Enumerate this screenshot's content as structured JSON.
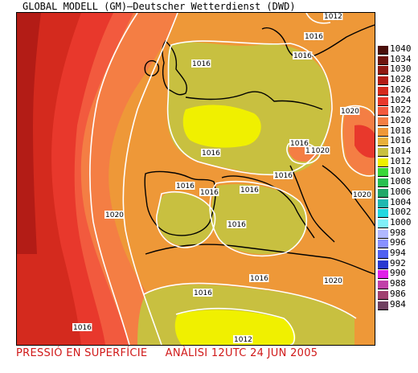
{
  "header": {
    "title": "GLOBAL MODELL (GM)—Deutscher Wetterdienst (DWD)"
  },
  "footer": {
    "left": "PRESSIÓ EN SUPERFÍCIE",
    "right": "ANÀLISI 12UTC 24 JUN 2005"
  },
  "legend": [
    {
      "label": "1040",
      "color": "#4a0f0a"
    },
    {
      "label": "1034",
      "color": "#6e140e"
    },
    {
      "label": "1030",
      "color": "#8f1812"
    },
    {
      "label": "1028",
      "color": "#b31c16"
    },
    {
      "label": "1026",
      "color": "#d42a1e"
    },
    {
      "label": "1024",
      "color": "#e8382c"
    },
    {
      "label": "1022",
      "color": "#f25a3e"
    },
    {
      "label": "1020",
      "color": "#f47e44"
    },
    {
      "label": "1018",
      "color": "#ee9838"
    },
    {
      "label": "1016",
      "color": "#e8b03a"
    },
    {
      "label": "1014",
      "color": "#c8c040"
    },
    {
      "label": "1012",
      "color": "#f0f000"
    },
    {
      "label": "1010",
      "color": "#38d838"
    },
    {
      "label": "1008",
      "color": "#28c050"
    },
    {
      "label": "1006",
      "color": "#20a868"
    },
    {
      "label": "1004",
      "color": "#20b8b0"
    },
    {
      "label": "1002",
      "color": "#20d8e0"
    },
    {
      "label": "1000",
      "color": "#80f0f8"
    },
    {
      "label": "998",
      "color": "#b0b8ff"
    },
    {
      "label": "996",
      "color": "#8890ff"
    },
    {
      "label": "994",
      "color": "#5060f0"
    },
    {
      "label": "992",
      "color": "#2838d0"
    },
    {
      "label": "990",
      "color": "#e020e8"
    },
    {
      "label": "988",
      "color": "#c040a8"
    },
    {
      "label": "986",
      "color": "#a04070"
    },
    {
      "label": "984",
      "color": "#704060"
    }
  ],
  "isobar_labels": [
    {
      "text": "1012"
    },
    {
      "text": "1016"
    },
    {
      "text": "1016"
    },
    {
      "text": "1016"
    },
    {
      "text": "1020"
    },
    {
      "text": "1016"
    },
    {
      "text": "1016"
    },
    {
      "text": "1020"
    },
    {
      "text": "1020"
    },
    {
      "text": "1016"
    },
    {
      "text": "1016"
    },
    {
      "text": "1016"
    },
    {
      "text": "1016"
    },
    {
      "text": "1016"
    },
    {
      "text": "1020"
    },
    {
      "text": "1016"
    },
    {
      "text": "1016"
    },
    {
      "text": "1020"
    },
    {
      "text": "1016"
    },
    {
      "text": "1020"
    },
    {
      "text": "1012"
    }
  ]
}
